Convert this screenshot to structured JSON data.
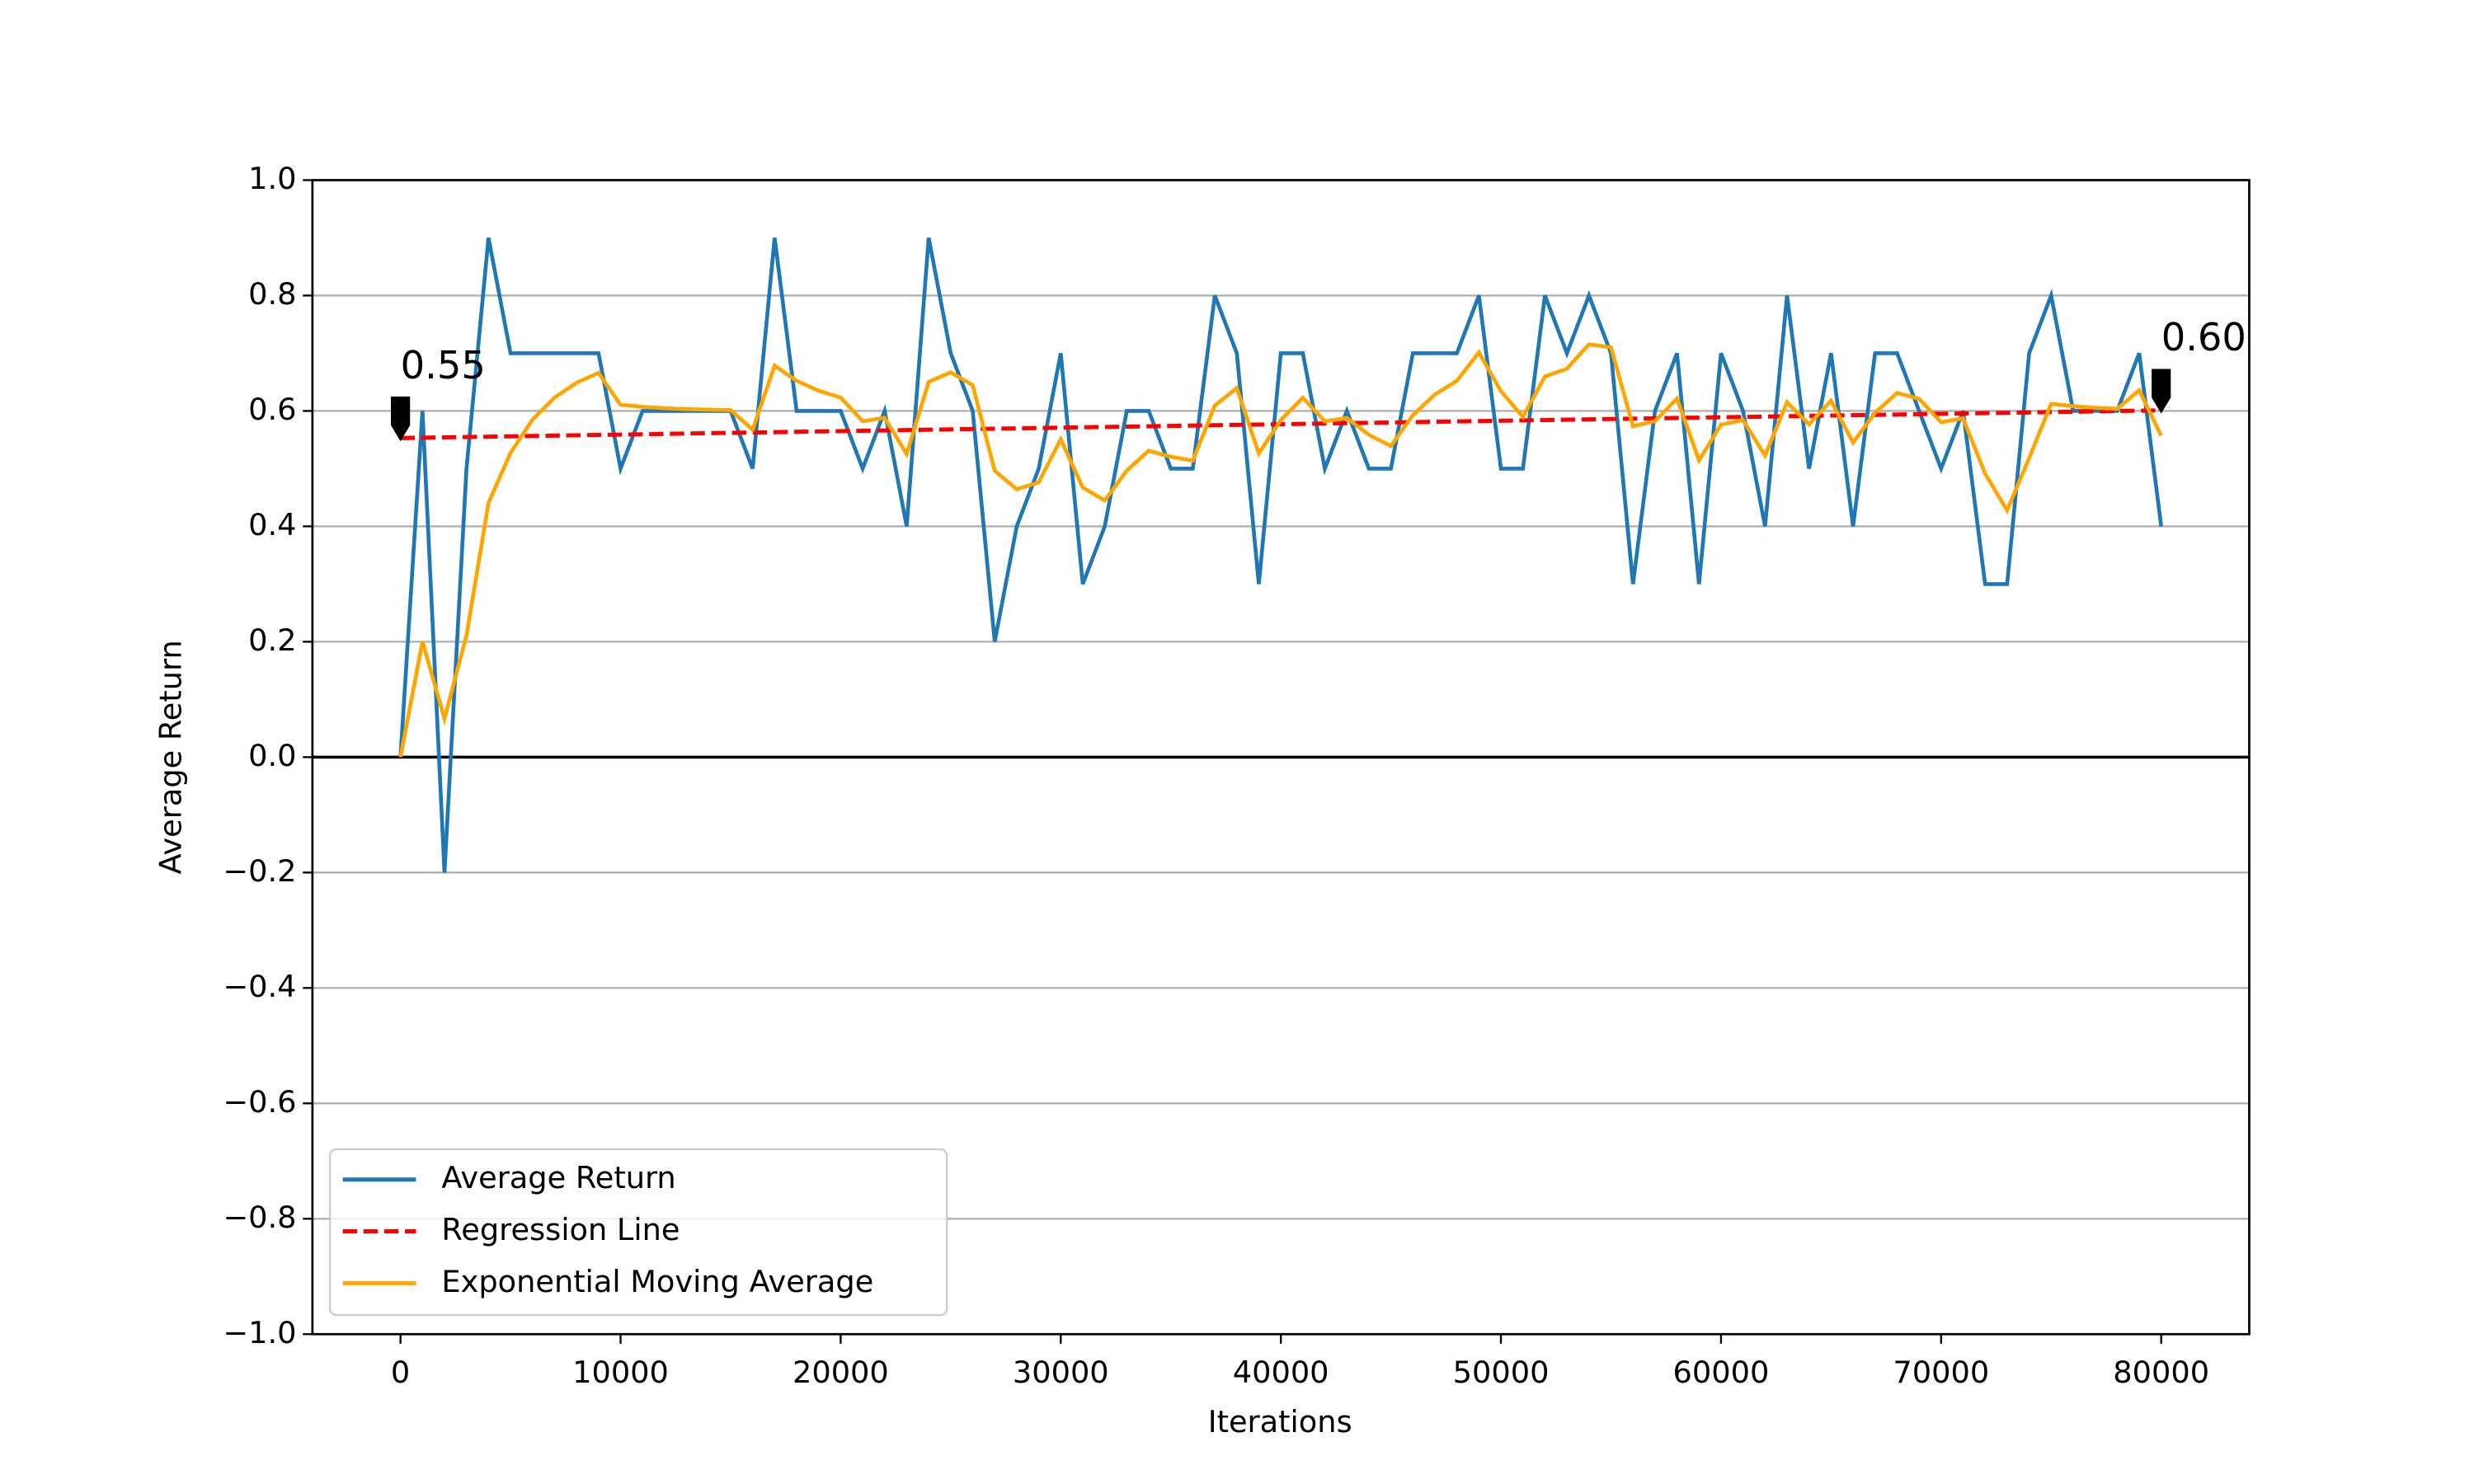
{
  "chart_data": {
    "type": "line",
    "xlabel": "Iterations",
    "ylabel": "Average Return",
    "x": [
      0,
      1000,
      2000,
      3000,
      4000,
      5000,
      6000,
      7000,
      8000,
      9000,
      10000,
      11000,
      12000,
      13000,
      14000,
      15000,
      16000,
      17000,
      18000,
      19000,
      20000,
      21000,
      22000,
      23000,
      24000,
      25000,
      26000,
      27000,
      28000,
      29000,
      30000,
      31000,
      32000,
      33000,
      34000,
      35000,
      36000,
      37000,
      38000,
      39000,
      40000,
      41000,
      42000,
      43000,
      44000,
      45000,
      46000,
      47000,
      48000,
      49000,
      50000,
      51000,
      52000,
      53000,
      54000,
      55000,
      56000,
      57000,
      58000,
      59000,
      60000,
      61000,
      62000,
      63000,
      64000,
      65000,
      66000,
      67000,
      68000,
      69000,
      70000,
      71000,
      72000,
      73000,
      74000,
      75000,
      76000,
      77000,
      78000,
      79000,
      80000
    ],
    "series": [
      {
        "name": "Average Return",
        "color": "#1f77b4",
        "dash": false,
        "values": [
          0.0,
          0.6,
          -0.2,
          0.5,
          0.9,
          0.7,
          0.7,
          0.7,
          0.7,
          0.7,
          0.5,
          0.6,
          0.6,
          0.6,
          0.6,
          0.6,
          0.5,
          0.9,
          0.6,
          0.6,
          0.6,
          0.5,
          0.6,
          0.4,
          0.9,
          0.7,
          0.6,
          0.2,
          0.4,
          0.5,
          0.7,
          0.3,
          0.4,
          0.6,
          0.6,
          0.5,
          0.5,
          0.8,
          0.7,
          0.3,
          0.7,
          0.7,
          0.5,
          0.6,
          0.5,
          0.5,
          0.7,
          0.7,
          0.7,
          0.8,
          0.5,
          0.5,
          0.8,
          0.7,
          0.8,
          0.7,
          0.3,
          0.6,
          0.7,
          0.3,
          0.7,
          0.6,
          0.4,
          0.8,
          0.5,
          0.7,
          0.4,
          0.7,
          0.7,
          0.6,
          0.5,
          0.6,
          0.3,
          0.3,
          0.7,
          0.8,
          0.6,
          0.6,
          0.6,
          0.7,
          0.4
        ]
      },
      {
        "name": "Regression Line",
        "color": "#ff0000",
        "dash": true,
        "x": [
          0,
          80000
        ],
        "values": [
          0.553,
          0.601
        ],
        "value_labels": [
          "0.55",
          "0.60"
        ]
      },
      {
        "name": "Exponential Moving Average",
        "color": "#ffa500",
        "dash": false,
        "values": [
          0,
          0.2,
          0.0667,
          0.2111,
          0.4407,
          0.5272,
          0.5848,
          0.6232,
          0.6488,
          0.6659,
          0.6106,
          0.6071,
          0.6047,
          0.6031,
          0.6021,
          0.6014,
          0.5676,
          0.6784,
          0.6523,
          0.6349,
          0.6233,
          0.5822,
          0.5881,
          0.5254,
          0.6503,
          0.6669,
          0.6446,
          0.4964,
          0.4643,
          0.4762,
          0.5508,
          0.4672,
          0.4448,
          0.4965,
          0.531,
          0.5207,
          0.5138,
          0.6092,
          0.6395,
          0.5263,
          0.5842,
          0.6228,
          0.5819,
          0.5879,
          0.5586,
          0.5391,
          0.5927,
          0.6285,
          0.6523,
          0.7015,
          0.6343,
          0.5895,
          0.6597,
          0.6731,
          0.7154,
          0.7103,
          0.5735,
          0.5823,
          0.6215,
          0.5143,
          0.5762,
          0.5841,
          0.5227,
          0.6151,
          0.5767,
          0.6178,
          0.5452,
          0.5968,
          0.6312,
          0.6208,
          0.5805,
          0.587,
          0.4913,
          0.4275,
          0.5184,
          0.6123,
          0.6082,
          0.6055,
          0.6037,
          0.6358,
          0.5572
        ]
      }
    ],
    "xlim": [
      -4000,
      84000
    ],
    "ylim": [
      -1,
      1
    ],
    "xticks": [
      0,
      10000,
      20000,
      30000,
      40000,
      50000,
      60000,
      70000,
      80000
    ],
    "yticks": [
      {
        "value": -1,
        "label": "−1.0"
      },
      {
        "value": -0.8,
        "label": "−0.8"
      },
      {
        "value": -0.6,
        "label": "−0.6"
      },
      {
        "value": -0.4,
        "label": "−0.4"
      },
      {
        "value": -0.2,
        "label": "−0.2"
      },
      {
        "value": 0,
        "label": "0.0"
      },
      {
        "value": 0.2,
        "label": "0.2"
      },
      {
        "value": 0.4,
        "label": "0.4"
      },
      {
        "value": 0.6,
        "label": "0.6"
      },
      {
        "value": 0.8,
        "label": "0.8"
      },
      {
        "value": 1,
        "label": "1.0"
      }
    ],
    "grid": "y",
    "hline": 0,
    "legend": "lower left"
  }
}
